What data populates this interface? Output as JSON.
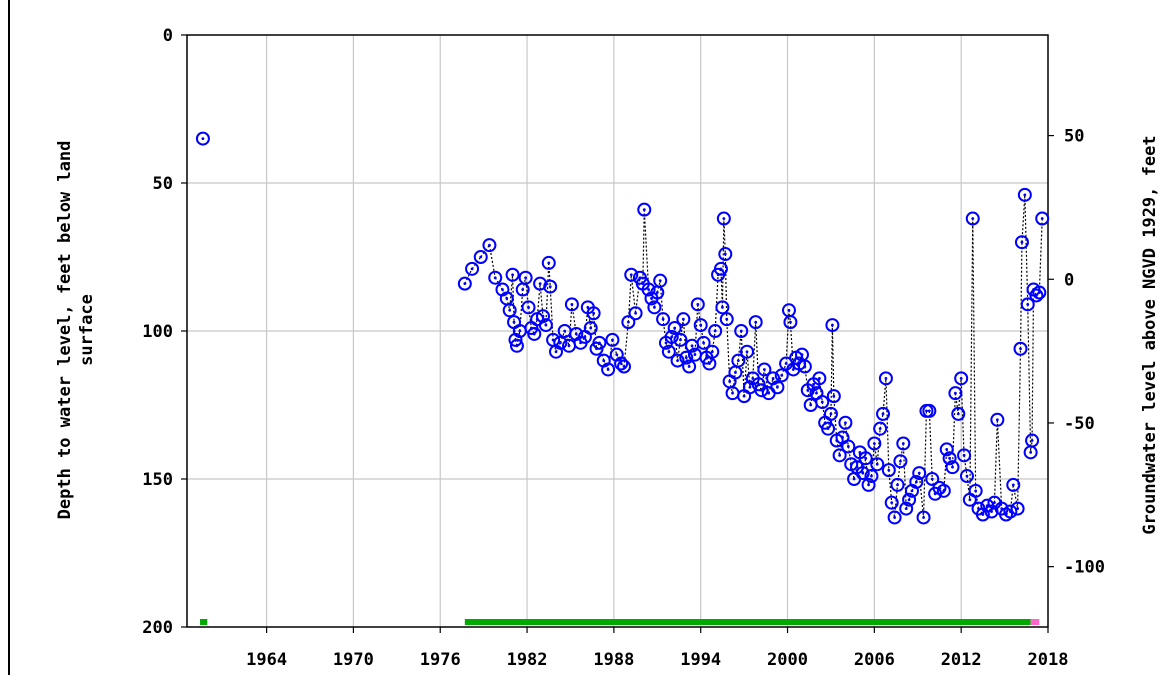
{
  "chart_data": {
    "type": "scatter",
    "title": "",
    "ylabel_left_line1": "Depth to water level, feet below land",
    "ylabel_left_line2": "surface",
    "ylabel_right": "Groundwater level above NGVD 1929, feet",
    "xlim": [
      1958.5,
      2018
    ],
    "ylim_depth": [
      0,
      200
    ],
    "ylim_right": [
      -121,
      85
    ],
    "y_reversed": true,
    "grid": true,
    "x_tick_labels": [
      "1964",
      "1970",
      "1976",
      "1982",
      "1988",
      "1994",
      "2000",
      "2006",
      "2012",
      "2018"
    ],
    "x_tick_values": [
      1964,
      1970,
      1976,
      1982,
      1988,
      1994,
      2000,
      2006,
      2012,
      2018
    ],
    "y_left_tick_labels": [
      "0",
      "50",
      "100",
      "150",
      "200"
    ],
    "y_left_tick_values": [
      0,
      50,
      100,
      150,
      200
    ],
    "y_right_tick_labels": [
      "50",
      "0",
      "-50",
      "-100"
    ],
    "y_right_tick_values": [
      50,
      0,
      -50,
      -100
    ],
    "marker_color": "#0000ff",
    "connector_color": "#000000",
    "approved_bar_color": "#00aa00",
    "provisional_bar_color": "#ff66cc",
    "record_bars": [
      {
        "start": 1959.4,
        "end": 1959.9,
        "status": "approved"
      },
      {
        "start": 1977.7,
        "end": 2016.8,
        "status": "approved"
      },
      {
        "start": 2016.8,
        "end": 2017.4,
        "status": "provisional"
      }
    ],
    "points": [
      [
        1959.6,
        35
      ],
      [
        1977.7,
        84
      ],
      [
        1978.2,
        79
      ],
      [
        1978.8,
        75
      ],
      [
        1979.4,
        71
      ],
      [
        1979.8,
        82
      ],
      [
        1980.3,
        86
      ],
      [
        1980.6,
        89
      ],
      [
        1980.8,
        93
      ],
      [
        1981.0,
        81
      ],
      [
        1981.1,
        97
      ],
      [
        1981.2,
        103
      ],
      [
        1981.3,
        105
      ],
      [
        1981.5,
        100
      ],
      [
        1981.7,
        86
      ],
      [
        1981.9,
        82
      ],
      [
        1982.1,
        92
      ],
      [
        1982.3,
        99
      ],
      [
        1982.5,
        101
      ],
      [
        1982.7,
        96
      ],
      [
        1982.9,
        84
      ],
      [
        1983.1,
        95
      ],
      [
        1983.3,
        98
      ],
      [
        1983.5,
        77
      ],
      [
        1983.6,
        85
      ],
      [
        1983.8,
        103
      ],
      [
        1984.0,
        107
      ],
      [
        1984.3,
        104
      ],
      [
        1984.6,
        100
      ],
      [
        1984.9,
        105
      ],
      [
        1985.1,
        91
      ],
      [
        1985.4,
        101
      ],
      [
        1985.7,
        104
      ],
      [
        1986.0,
        102
      ],
      [
        1986.2,
        92
      ],
      [
        1986.4,
        99
      ],
      [
        1986.6,
        94
      ],
      [
        1986.8,
        106
      ],
      [
        1987.0,
        104
      ],
      [
        1987.3,
        110
      ],
      [
        1987.6,
        113
      ],
      [
        1987.9,
        103
      ],
      [
        1988.2,
        108
      ],
      [
        1988.5,
        111
      ],
      [
        1988.7,
        112
      ],
      [
        1989.0,
        97
      ],
      [
        1989.2,
        81
      ],
      [
        1989.5,
        94
      ],
      [
        1989.8,
        82
      ],
      [
        1990.0,
        84
      ],
      [
        1990.1,
        59
      ],
      [
        1990.4,
        86
      ],
      [
        1990.6,
        89
      ],
      [
        1990.8,
        92
      ],
      [
        1991.0,
        87
      ],
      [
        1991.2,
        83
      ],
      [
        1991.4,
        96
      ],
      [
        1991.6,
        104
      ],
      [
        1991.8,
        107
      ],
      [
        1992.0,
        102
      ],
      [
        1992.2,
        99
      ],
      [
        1992.4,
        110
      ],
      [
        1992.6,
        103
      ],
      [
        1992.8,
        96
      ],
      [
        1993.0,
        109
      ],
      [
        1993.2,
        112
      ],
      [
        1993.4,
        105
      ],
      [
        1993.6,
        108
      ],
      [
        1993.8,
        91
      ],
      [
        1994.0,
        98
      ],
      [
        1994.2,
        104
      ],
      [
        1994.4,
        109
      ],
      [
        1994.6,
        111
      ],
      [
        1994.8,
        107
      ],
      [
        1995.0,
        100
      ],
      [
        1995.2,
        81
      ],
      [
        1995.4,
        79
      ],
      [
        1995.5,
        92
      ],
      [
        1995.6,
        62
      ],
      [
        1995.7,
        74
      ],
      [
        1995.8,
        96
      ],
      [
        1996.0,
        117
      ],
      [
        1996.2,
        121
      ],
      [
        1996.4,
        114
      ],
      [
        1996.6,
        110
      ],
      [
        1996.8,
        100
      ],
      [
        1997.0,
        122
      ],
      [
        1997.2,
        107
      ],
      [
        1997.4,
        119
      ],
      [
        1997.6,
        116
      ],
      [
        1997.8,
        97
      ],
      [
        1998.0,
        118
      ],
      [
        1998.2,
        120
      ],
      [
        1998.4,
        113
      ],
      [
        1998.7,
        121
      ],
      [
        1999.0,
        116
      ],
      [
        1999.3,
        119
      ],
      [
        1999.6,
        115
      ],
      [
        1999.9,
        111
      ],
      [
        2000.1,
        93
      ],
      [
        2000.2,
        97
      ],
      [
        2000.4,
        113
      ],
      [
        2000.6,
        109
      ],
      [
        2000.8,
        111
      ],
      [
        2001.0,
        108
      ],
      [
        2001.2,
        112
      ],
      [
        2001.4,
        120
      ],
      [
        2001.6,
        125
      ],
      [
        2001.8,
        118
      ],
      [
        2002.0,
        121
      ],
      [
        2002.2,
        116
      ],
      [
        2002.4,
        124
      ],
      [
        2002.6,
        131
      ],
      [
        2002.8,
        133
      ],
      [
        2003.0,
        128
      ],
      [
        2003.1,
        98
      ],
      [
        2003.2,
        122
      ],
      [
        2003.4,
        137
      ],
      [
        2003.6,
        142
      ],
      [
        2003.8,
        136
      ],
      [
        2004.0,
        131
      ],
      [
        2004.2,
        139
      ],
      [
        2004.4,
        145
      ],
      [
        2004.6,
        150
      ],
      [
        2004.8,
        146
      ],
      [
        2005.0,
        141
      ],
      [
        2005.2,
        148
      ],
      [
        2005.4,
        143
      ],
      [
        2005.6,
        152
      ],
      [
        2005.8,
        149
      ],
      [
        2006.0,
        138
      ],
      [
        2006.2,
        145
      ],
      [
        2006.4,
        133
      ],
      [
        2006.6,
        128
      ],
      [
        2006.8,
        116
      ],
      [
        2007.0,
        147
      ],
      [
        2007.2,
        158
      ],
      [
        2007.4,
        163
      ],
      [
        2007.6,
        152
      ],
      [
        2007.8,
        144
      ],
      [
        2008.0,
        138
      ],
      [
        2008.2,
        160
      ],
      [
        2008.4,
        157
      ],
      [
        2008.6,
        154
      ],
      [
        2008.9,
        151
      ],
      [
        2009.1,
        148
      ],
      [
        2009.4,
        163
      ],
      [
        2009.6,
        127
      ],
      [
        2009.8,
        127
      ],
      [
        2010.0,
        150
      ],
      [
        2010.2,
        155
      ],
      [
        2010.5,
        153
      ],
      [
        2010.8,
        154
      ],
      [
        2011.0,
        140
      ],
      [
        2011.2,
        143
      ],
      [
        2011.4,
        146
      ],
      [
        2011.6,
        121
      ],
      [
        2011.8,
        128
      ],
      [
        2012.0,
        116
      ],
      [
        2012.2,
        142
      ],
      [
        2012.4,
        149
      ],
      [
        2012.6,
        157
      ],
      [
        2012.8,
        62
      ],
      [
        2013.0,
        154
      ],
      [
        2013.2,
        160
      ],
      [
        2013.5,
        162
      ],
      [
        2013.8,
        159
      ],
      [
        2014.1,
        161
      ],
      [
        2014.3,
        158
      ],
      [
        2014.5,
        130
      ],
      [
        2014.8,
        160
      ],
      [
        2015.1,
        162
      ],
      [
        2015.4,
        161
      ],
      [
        2015.6,
        152
      ],
      [
        2015.9,
        160
      ],
      [
        2016.1,
        106
      ],
      [
        2016.2,
        70
      ],
      [
        2016.4,
        54
      ],
      [
        2016.6,
        91
      ],
      [
        2016.8,
        141
      ],
      [
        2016.9,
        137
      ],
      [
        2017.0,
        86
      ],
      [
        2017.2,
        88
      ],
      [
        2017.4,
        87
      ],
      [
        2017.6,
        62
      ]
    ]
  }
}
